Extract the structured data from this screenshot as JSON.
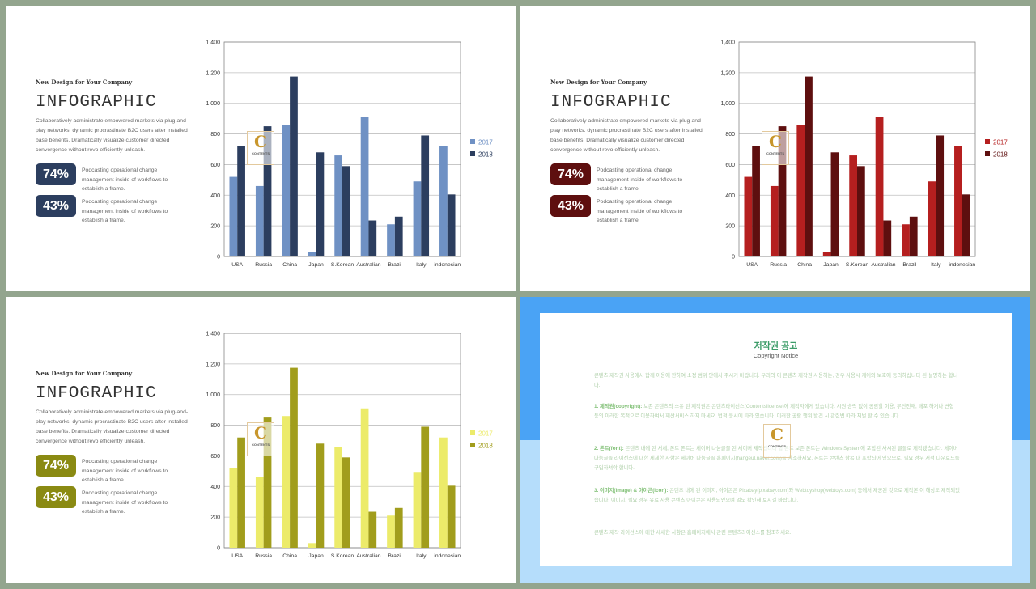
{
  "slides": [
    {
      "subtitle": "New Design  for Your Company",
      "title": "INFOGRAPHIC",
      "description": "Collaboratively administrate empowered markets via plug-and-play networks. dynamic procrastinate B2C users after installed base benefits. Dramatically visualize customer directed convergence without revo efficiently unleash.",
      "stats": [
        {
          "value": "74%",
          "text": "Podcasting operational change management inside of workflows to establish a frame."
        },
        {
          "value": "43%",
          "text": "Podcasting operational change management inside of workflows to establish a frame."
        }
      ],
      "colors": {
        "badge": "#2c3e5f",
        "s2017": "#6f91c4",
        "s2018": "#2c3e5f"
      }
    },
    {
      "subtitle": "New Design  for Your Company",
      "title": "INFOGRAPHIC",
      "description": "Collaboratively administrate empowered markets via plug-and-play networks. dynamic procrastinate B2C users after installed base benefits. Dramatically visualize customer directed convergence without revo efficiently unleash.",
      "stats": [
        {
          "value": "74%",
          "text": "Podcasting operational change management inside of workflows to establish a frame."
        },
        {
          "value": "43%",
          "text": "Podcasting operational change management inside of workflows to establish a frame."
        }
      ],
      "colors": {
        "badge": "#5e0f0f",
        "s2017": "#b51f1f",
        "s2018": "#5e0f0f"
      }
    },
    {
      "subtitle": "New Design  for Your Company",
      "title": "INFOGRAPHIC",
      "description": "Collaboratively administrate empowered markets via plug-and-play networks. dynamic procrastinate B2C users after installed base benefits. Dramatically visualize customer directed convergence without revo efficiently unleash.",
      "stats": [
        {
          "value": "74%",
          "text": "Podcasting operational change management inside of workflows to establish a frame."
        },
        {
          "value": "43%",
          "text": "Podcasting operational change management inside of workflows to establish a frame."
        }
      ],
      "colors": {
        "badge": "#8a8a12",
        "s2017": "#eceb6a",
        "s2018": "#a19d1c"
      }
    }
  ],
  "logo": {
    "letter": "C",
    "word": "CONTENTS"
  },
  "chart_data": {
    "type": "bar",
    "categories": [
      "USA",
      "Russia",
      "China",
      "Japan",
      "S.Korean",
      "Australian",
      "Brazil",
      "Italy",
      "indonesian"
    ],
    "series": [
      {
        "name": "2017",
        "values": [
          520,
          460,
          860,
          30,
          660,
          910,
          210,
          490,
          720
        ]
      },
      {
        "name": "2018",
        "values": [
          720,
          850,
          1175,
          680,
          590,
          235,
          260,
          790,
          405
        ]
      }
    ],
    "ylim": [
      0,
      1400
    ],
    "yticks": [
      "0",
      "200",
      "400",
      "600",
      "800",
      "1,000",
      "1,200",
      "1,400"
    ],
    "grid": true,
    "legend": "right"
  },
  "copyright": {
    "title": "저작권 공고",
    "subtitle": "Copyright Notice",
    "p1": "콘텐츠 제작권 사용에서 함께 이용에 한하여 소정 범위 안에서 주시기 바랍니다. 우리의 이 콘텐츠 제작권 사용하는, 경우 사용시 케어와 보호에 동의하십니다 된 설명하는 합니다.",
    "p2_head": "1. 제작권(copyright):",
    "p2": " 보존 콘텐츠의 소유 된 제작권은 콘텐츠라이선스(Contentslicense)에 제작자에게 있습니다. 시원 승락 없이 공람할 이용, 무단전재, 배포 하거나 변형 등의 이러한 목적으로 이용하여서 재산서비스 하지 마세요. 법적 응시에 따라 있습니다. 이러한 공람 행위 발견 시 관련법 따라 처벌 할 수 있습니다.",
    "p3_head": "2. 폰트(font):",
    "p3": " 콘텐츠 내에 된 서체, 폰트 폰트는 세이버 나눔글꼴 된 세이버 제작됩니다 합 폰트 보존 폰트는 Windows System에 포함된 사시된 글꼴로 제작됐습니다. 세이버 나눔글꼴 라이선스에 대한 세세한 사항은 세이버 나눔글꼴 홈페이지(hangeul.naver.com)를 참조하세요. 폰트는 콘텐츠 항목 내 포함되어 있으므로, 필요 경우 서적 다운로드를 구입하셔야 합니다.",
    "p4_head": "3. 이미지(image) & 아이콘(icon):",
    "p4": " 콘텐츠 내에 된 이미지, 아이콘은 Pixabay(pixabay.com)와 Webtoyshop(webtoys.com) 등에서 제공된 것으로 제작본 이 해상도 제작되었습니다. 이미지, 필요 경우 유료 사용 콘텐츠 아이콘은 사용되었으며 별도 확인해 보시길 바랍니다.",
    "p5": "콘텐츠 제작 라이선스에 대한 세세한 사항은 홈페이지에서 관련 콘텐츠라이선스를 참조하세요."
  }
}
